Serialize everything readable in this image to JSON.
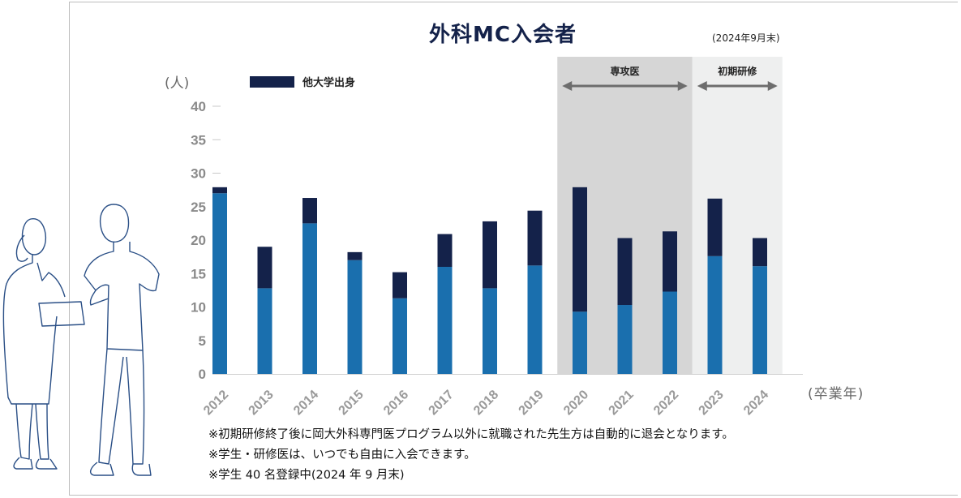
{
  "chart_data": {
    "type": "bar",
    "stacked": true,
    "title": "外科MC入会者",
    "subtitle": "(2024年9月末)",
    "ylabel": "(人)",
    "xlabel": "(卒業年)",
    "ylim": [
      0,
      40
    ],
    "yticks": [
      0,
      5,
      10,
      15,
      20,
      25,
      30,
      35,
      40
    ],
    "categories": [
      "2012",
      "2013",
      "2014",
      "2015",
      "2016",
      "2017",
      "2018",
      "2019",
      "2020",
      "2021",
      "2022",
      "2023",
      "2024"
    ],
    "series": [
      {
        "values": [
          27,
          12.8,
          22.5,
          17,
          11.3,
          16,
          12.8,
          16.2,
          9.3,
          10.3,
          12.3,
          17.6,
          16.1
        ],
        "color": "#1a6fae"
      },
      {
        "name": "他大学出身",
        "values": [
          0.9,
          6.2,
          3.8,
          1.2,
          3.9,
          4.9,
          10,
          8.2,
          18.6,
          10,
          9,
          8.6,
          4.2
        ],
        "color": "#14224a"
      }
    ],
    "regions": [
      {
        "label": "専攻医",
        "from": "2020",
        "to": "2022",
        "color": "#d6d6d6"
      },
      {
        "label": "初期研修",
        "from": "2023",
        "to": "2024",
        "color": "#eeefef"
      }
    ],
    "legend_position": "top-left",
    "grid": false
  },
  "notes": [
    "※初期研修終了後に岡大外科専門医プログラム以外に就職された先生方は自動的に退会となります。",
    "※学生・研修医は、いつでも自由に入会できます。",
    "※学生 40 名登録中(2024 年 9 月末)"
  ]
}
